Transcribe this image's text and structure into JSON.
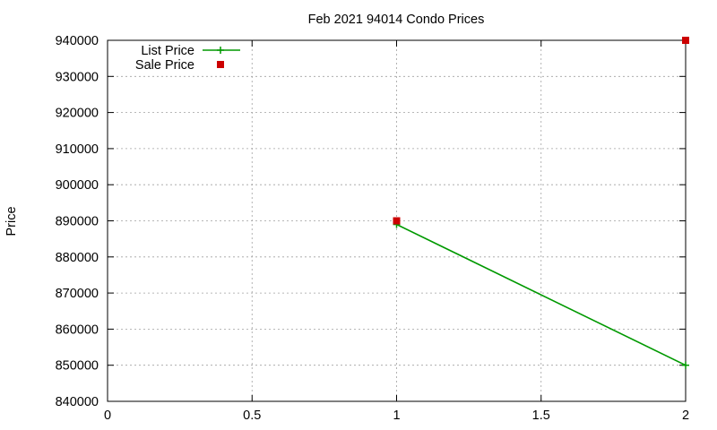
{
  "chart_data": {
    "type": "line",
    "title": "Feb 2021 94014 Condo Prices",
    "xlabel": "",
    "ylabel": "Price",
    "xlim": [
      0,
      2
    ],
    "ylim": [
      840000,
      940000
    ],
    "xticks": [
      0,
      0.5,
      1,
      1.5,
      2
    ],
    "yticks": [
      840000,
      850000,
      860000,
      870000,
      880000,
      890000,
      900000,
      910000,
      920000,
      930000,
      940000
    ],
    "grid": true,
    "legend_position": "top-left",
    "series": [
      {
        "name": "List Price",
        "style": "line-with-plus-markers",
        "color": "#009900",
        "points": [
          {
            "x": 1,
            "y": 889000
          },
          {
            "x": 2,
            "y": 850000
          }
        ]
      },
      {
        "name": "Sale Price",
        "style": "square-markers",
        "color": "#cc0000",
        "points": [
          {
            "x": 1,
            "y": 890000
          },
          {
            "x": 2,
            "y": 940000
          }
        ]
      }
    ]
  }
}
